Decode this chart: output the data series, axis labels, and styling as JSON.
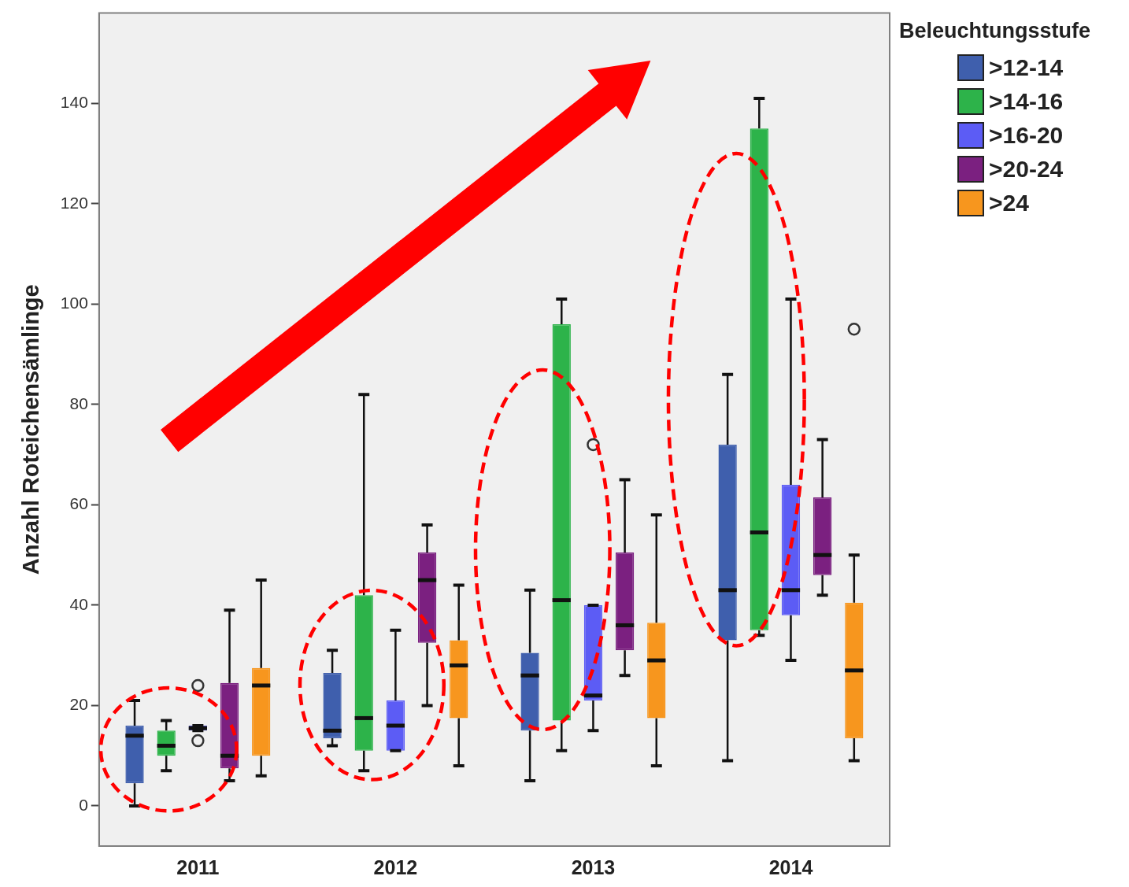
{
  "chart_data": {
    "type": "box",
    "ylabel": "Anzahl Roteichensämlinge",
    "legend_title": "Beleuchtungsstufe",
    "legend": "top right",
    "grid": false,
    "categories": [
      "2011",
      "2012",
      "2013",
      "2014"
    ],
    "ylim": [
      -8,
      158
    ],
    "yticks": [
      0,
      20,
      40,
      60,
      80,
      100,
      120,
      140
    ],
    "series": [
      {
        "name": ">12-14",
        "color": "#3f5fad",
        "boxes": [
          {
            "low": 0,
            "q1": 4.5,
            "median": 14,
            "q3": 16,
            "high": 21
          },
          {
            "low": 12,
            "q1": 13.5,
            "median": 15,
            "q3": 26.5,
            "high": 31
          },
          {
            "low": 5,
            "q1": 15,
            "median": 26,
            "q3": 30.5,
            "high": 43
          },
          {
            "low": 9,
            "q1": 33,
            "median": 43,
            "q3": 72,
            "high": 86
          }
        ]
      },
      {
        "name": ">14-16",
        "color": "#2db34a",
        "boxes": [
          {
            "low": 7,
            "q1": 10,
            "median": 12,
            "q3": 15,
            "high": 17
          },
          {
            "low": 7,
            "q1": 11,
            "median": 17.5,
            "q3": 42,
            "high": 82
          },
          {
            "low": 11,
            "q1": 17,
            "median": 41,
            "q3": 96,
            "high": 101
          },
          {
            "low": 34,
            "q1": 35,
            "median": 54.5,
            "q3": 135,
            "high": 141
          }
        ]
      },
      {
        "name": ">16-20",
        "color": "#5c5cf5",
        "boxes": [
          {
            "low": 15,
            "q1": 15,
            "median": 15.5,
            "q3": 16,
            "high": 16,
            "outliers": [
              13,
              24
            ]
          },
          {
            "low": 11,
            "q1": 11,
            "median": 16,
            "q3": 21,
            "high": 35
          },
          {
            "low": 15,
            "q1": 21,
            "median": 22,
            "q3": 40,
            "high": 40,
            "outliers": [
              72
            ]
          },
          {
            "low": 29,
            "q1": 38,
            "median": 43,
            "q3": 64,
            "high": 101
          }
        ]
      },
      {
        "name": ">20-24",
        "color": "#7b2080",
        "boxes": [
          {
            "low": 5,
            "q1": 7.5,
            "median": 10,
            "q3": 24.5,
            "high": 39
          },
          {
            "low": 20,
            "q1": 32.5,
            "median": 45,
            "q3": 50.5,
            "high": 56
          },
          {
            "low": 26,
            "q1": 31,
            "median": 36,
            "q3": 50.5,
            "high": 65
          },
          {
            "low": 42,
            "q1": 46,
            "median": 50,
            "q3": 61.5,
            "high": 73
          }
        ]
      },
      {
        "name": ">24",
        "color": "#f7961e",
        "boxes": [
          {
            "low": 6,
            "q1": 10,
            "median": 24,
            "q3": 27.5,
            "high": 45
          },
          {
            "low": 8,
            "q1": 17.5,
            "median": 28,
            "q3": 33,
            "high": 44
          },
          {
            "low": 8,
            "q1": 17.5,
            "median": 29,
            "q3": 36.5,
            "high": 58
          },
          {
            "low": 9,
            "q1": 13.5,
            "median": 27,
            "q3": 40.5,
            "high": 50,
            "outliers": [
              95
            ]
          }
        ]
      }
    ]
  }
}
